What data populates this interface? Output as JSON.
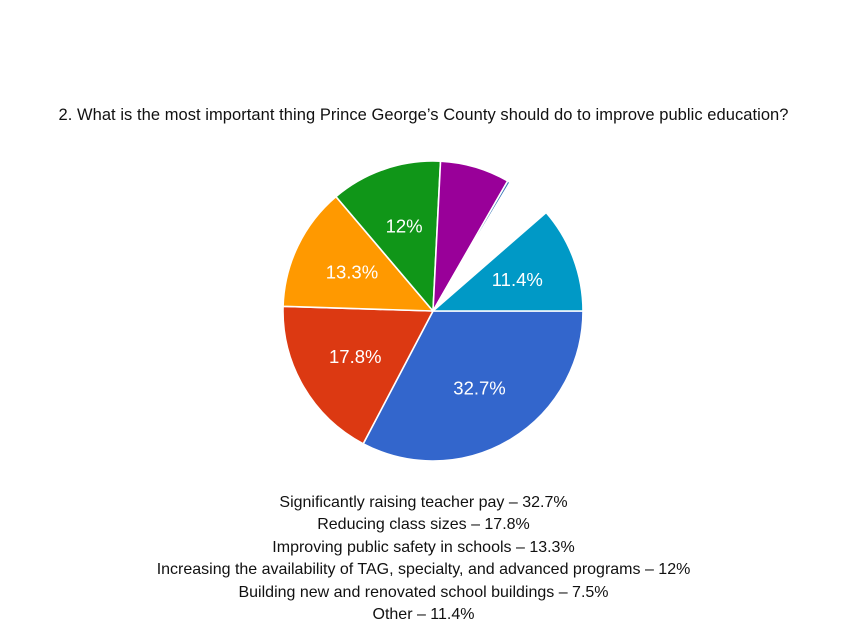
{
  "question": "2. What is the most important thing Prince George’s County should do to improve public education?",
  "chart_data": {
    "type": "pie",
    "slices": [
      {
        "label": "Significantly raising teacher pay",
        "value": 32.7,
        "display": "32.7%",
        "color": "#3366cc"
      },
      {
        "label": "Reducing class sizes",
        "value": 17.8,
        "display": "17.8%",
        "color": "#dc3912"
      },
      {
        "label": "Improving public safety in schools",
        "value": 13.3,
        "display": "13.3%",
        "color": "#ff9900"
      },
      {
        "label": "Increasing the availability of TAG, specialty, and advanced programs",
        "value": 12,
        "display": "12%",
        "color": "#109618"
      },
      {
        "label": "Building new and renovated school buildings",
        "value": 7.5,
        "display": "",
        "color": "#990099"
      },
      {
        "label": "",
        "value": 0.3,
        "display": "",
        "color": "#3b78b8"
      },
      {
        "label": "",
        "value": 5.0,
        "display": "",
        "color": "#ffffff"
      },
      {
        "label": "Other",
        "value": 11.4,
        "display": "11.4%",
        "color": "#0099c6"
      }
    ]
  },
  "legend": [
    "Significantly raising teacher pay – 32.7%",
    "Reducing class sizes – 17.8%",
    "Improving public safety in schools – 13.3%",
    "Increasing the availability of TAG, specialty, and advanced programs – 12%",
    "Building new and renovated school buildings – 7.5%",
    "Other – 11.4%"
  ]
}
